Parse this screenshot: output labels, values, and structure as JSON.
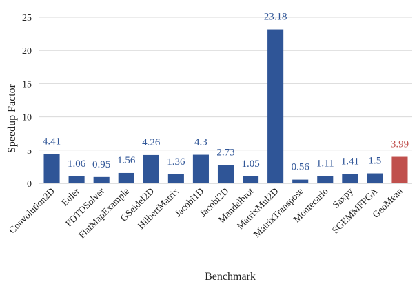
{
  "chart_data": {
    "type": "bar",
    "title": "",
    "xlabel": "Benchmark",
    "ylabel": "Speedup Factor",
    "ylim": [
      0,
      25
    ],
    "yticks": [
      0,
      5,
      10,
      15,
      20,
      25
    ],
    "grid": true,
    "legend": "none",
    "categories": [
      "Convolution2D",
      "Euler",
      "FDTDSolver",
      "FlatMapExample",
      "GSeidel2D",
      "HilbertMatrix",
      "Jacobi1D",
      "Jacobi2D",
      "Mandelbrot",
      "MatrixMul2D",
      "MatrixTranspose",
      "Montecarlo",
      "Saxpy",
      "SGEMMFPGA",
      "GeoMean"
    ],
    "values": [
      4.41,
      1.06,
      0.95,
      1.56,
      4.26,
      1.36,
      4.3,
      2.73,
      1.05,
      23.18,
      0.56,
      1.11,
      1.41,
      1.5,
      3.99
    ],
    "data_labels": [
      "4.41",
      "1.06",
      "0.95",
      "1.56",
      "4.26",
      "1.36",
      "4.3",
      "2.73",
      "1.05",
      "23.18",
      "0.56",
      "1.11",
      "1.41",
      "1.5",
      "3.99"
    ],
    "bar_color": "#2f5597",
    "highlight_color": "#c0504d",
    "highlight_category": "GeoMean",
    "label_color": "#2f5597",
    "highlight_label_color": "#c0504d"
  }
}
